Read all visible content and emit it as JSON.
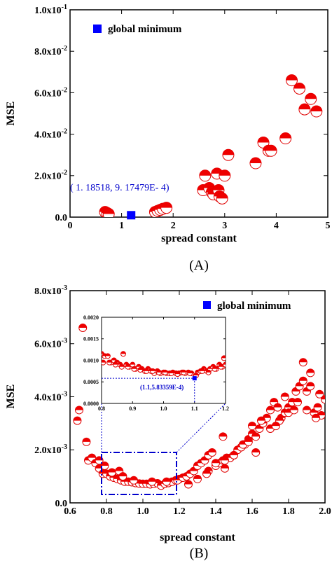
{
  "chart_data": [
    {
      "type": "scatter",
      "panel_label": "(A)",
      "xlabel": "spread constant",
      "ylabel": "MSE",
      "xlim": [
        0,
        5
      ],
      "ylim": [
        0,
        0.1
      ],
      "x_ticks": [
        "0",
        "1",
        "2",
        "3",
        "4",
        "5"
      ],
      "y_ticks": [
        "0.0",
        "2.0x10-2",
        "4.0x10-2",
        "6.0x10-2",
        "8.0x10-2",
        "1.0x10-1"
      ],
      "legend": {
        "label": "global minimum",
        "placement": "top-left"
      },
      "annotation": "( 1. 18518, 9. 17479E- 4)",
      "global_minimum": {
        "x": 1.18518,
        "y": 0.000917479
      },
      "x": [
        0.68,
        0.72,
        0.75,
        1.65,
        1.7,
        1.75,
        1.8,
        1.87,
        2.58,
        2.62,
        2.7,
        2.75,
        2.78,
        2.85,
        2.88,
        2.9,
        2.95,
        3.0,
        3.07,
        3.6,
        3.75,
        3.85,
        3.9,
        4.18,
        4.3,
        4.45,
        4.55,
        4.67,
        4.78
      ],
      "y": [
        0.0025,
        0.002,
        0.0015,
        0.0025,
        0.003,
        0.0035,
        0.004,
        0.0045,
        0.013,
        0.02,
        0.014,
        0.012,
        0.011,
        0.021,
        0.013,
        0.01,
        0.009,
        0.02,
        0.03,
        0.026,
        0.036,
        0.032,
        0.032,
        0.038,
        0.066,
        0.062,
        0.052,
        0.057,
        0.051
      ]
    },
    {
      "type": "scatter",
      "panel_label": "(B)",
      "xlabel": "spread constant",
      "ylabel": "MSE",
      "xlim": [
        0.6,
        2.0
      ],
      "ylim": [
        0,
        0.008
      ],
      "x_ticks": [
        "0.6",
        "0.8",
        "1.0",
        "1.2",
        "1.4",
        "1.6",
        "1.8",
        "2.0"
      ],
      "y_ticks": [
        "0.0",
        "2.0x10-3",
        "4.0x10-3",
        "6.0x10-3",
        "8.0x10-3"
      ],
      "legend": {
        "label": "global minimum",
        "placement": "top-right"
      },
      "x": [
        0.64,
        0.65,
        0.67,
        0.69,
        0.7,
        0.72,
        0.74,
        0.76,
        0.78,
        0.8,
        0.82,
        0.84,
        0.86,
        0.88,
        0.9,
        0.92,
        0.94,
        0.96,
        0.98,
        1.0,
        1.02,
        1.04,
        1.06,
        1.08,
        1.1,
        1.12,
        1.14,
        1.16,
        1.18,
        1.2,
        0.83,
        0.87,
        0.89,
        0.95,
        1.05,
        1.13,
        1.19,
        1.22,
        1.24,
        1.26,
        1.28,
        1.3,
        1.32,
        1.34,
        1.36,
        1.38,
        1.4,
        1.42,
        1.44,
        1.46,
        1.48,
        1.5,
        1.52,
        1.54,
        1.56,
        1.58,
        1.6,
        1.62,
        1.64,
        1.66,
        1.68,
        1.7,
        1.72,
        1.74,
        1.76,
        1.78,
        1.8,
        1.82,
        1.84,
        1.86,
        1.88,
        1.9,
        1.92,
        1.94,
        1.96,
        1.98,
        2.0,
        1.25,
        1.3,
        1.36,
        1.4,
        1.45,
        1.5,
        1.55,
        1.6,
        1.65,
        1.7,
        1.75,
        1.8,
        1.85,
        1.9,
        1.95,
        1.35,
        1.45,
        1.58,
        1.62,
        1.73,
        1.78,
        1.83,
        1.88,
        1.92,
        1.97,
        0.76,
        0.79,
        1.44
      ],
      "y": [
        0.0031,
        0.0035,
        0.0066,
        0.0023,
        0.0016,
        0.0017,
        0.0015,
        0.0013,
        0.0011,
        0.0011,
        0.001,
        0.00095,
        0.0009,
        0.00085,
        0.0008,
        0.0008,
        0.00078,
        0.00075,
        0.00073,
        0.00072,
        0.00072,
        0.0007,
        0.00072,
        0.00074,
        0.00065,
        0.00072,
        0.00075,
        0.0008,
        0.00085,
        0.0009,
        0.00115,
        0.0012,
        0.001,
        0.00085,
        0.0008,
        0.0008,
        0.00085,
        0.00095,
        0.001,
        0.0011,
        0.0012,
        0.0014,
        0.0015,
        0.0016,
        0.0018,
        0.0019,
        0.0014,
        0.0015,
        0.0016,
        0.0017,
        0.0017,
        0.0018,
        0.002,
        0.0021,
        0.0022,
        0.0024,
        0.0026,
        0.0025,
        0.0028,
        0.003,
        0.0032,
        0.0035,
        0.0038,
        0.0036,
        0.0032,
        0.0034,
        0.0036,
        0.0038,
        0.0042,
        0.0044,
        0.0046,
        0.0042,
        0.0044,
        0.0034,
        0.0036,
        0.0033,
        0.0039,
        0.0007,
        0.0009,
        0.0012,
        0.0015,
        0.0016,
        0.0018,
        0.0022,
        0.0029,
        0.0031,
        0.0028,
        0.0031,
        0.0034,
        0.0038,
        0.0035,
        0.0032,
        0.0011,
        0.0013,
        0.0023,
        0.0019,
        0.0029,
        0.004,
        0.0035,
        0.0053,
        0.0049,
        0.0041,
        0.0016,
        0.0014,
        0.0025
      ],
      "inset": {
        "xlim": [
          0.8,
          1.2
        ],
        "ylim": [
          0,
          0.002
        ],
        "x_ticks": [
          "0.8",
          "0.9",
          "1.0",
          "1.1",
          "1.2"
        ],
        "y_ticks": [
          "0.0000",
          "0.0005",
          "0.0010",
          "0.0015",
          "0.0020"
        ],
        "annotation": "(1.1,5.83359E-4)",
        "global_minimum": {
          "x": 1.1,
          "y": 0.000583359
        },
        "x": [
          0.8,
          0.81,
          0.82,
          0.83,
          0.84,
          0.85,
          0.86,
          0.87,
          0.88,
          0.89,
          0.9,
          0.91,
          0.92,
          0.93,
          0.94,
          0.95,
          0.96,
          0.97,
          0.98,
          0.99,
          1.0,
          1.01,
          1.02,
          1.03,
          1.04,
          1.05,
          1.06,
          1.07,
          1.08,
          1.09,
          1.11,
          1.12,
          1.13,
          1.14,
          1.15,
          1.16,
          1.17,
          1.18,
          1.19,
          1.2,
          0.805,
          0.825,
          0.845,
          0.865,
          0.885,
          0.905,
          0.925,
          0.945,
          0.965,
          0.985,
          1.005,
          1.025,
          1.045,
          1.065,
          1.085,
          1.105,
          1.125,
          1.145,
          1.165,
          1.185,
          1.195
        ],
        "y": [
          0.00115,
          0.0011,
          0.0011,
          0.00095,
          0.001,
          0.00095,
          0.0009,
          0.00115,
          0.0009,
          0.00085,
          0.0009,
          0.0008,
          0.00085,
          0.0008,
          0.00075,
          0.0008,
          0.00075,
          0.0007,
          0.00075,
          0.0007,
          0.00072,
          0.0007,
          0.0007,
          0.00072,
          0.0007,
          0.0007,
          0.00072,
          0.0007,
          0.00072,
          0.0007,
          0.00072,
          0.00075,
          0.0008,
          0.00075,
          0.0008,
          0.00085,
          0.0008,
          0.0009,
          0.00085,
          0.0009,
          0.00095,
          0.00095,
          0.0009,
          0.00085,
          0.00085,
          0.0008,
          0.00078,
          0.00075,
          0.00075,
          0.00072,
          0.00072,
          0.0007,
          0.00068,
          0.00072,
          0.0007,
          0.00065,
          0.00075,
          0.00072,
          0.0008,
          0.00085,
          0.00105
        ]
      }
    }
  ]
}
